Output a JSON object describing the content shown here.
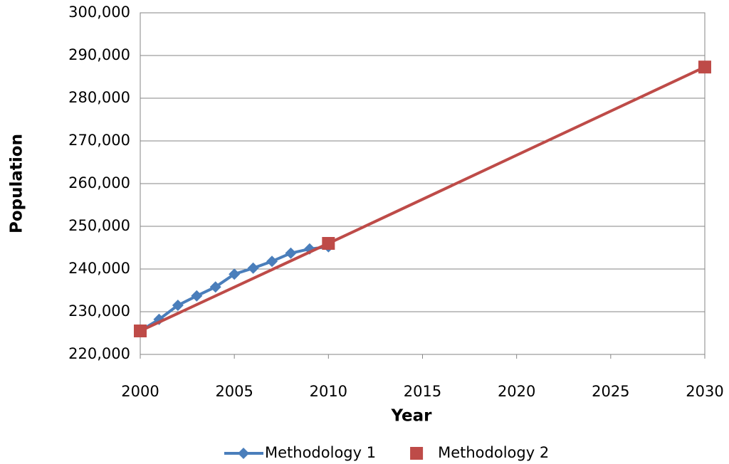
{
  "chart_data": {
    "type": "line",
    "x_label": "Year",
    "y_label": "Population",
    "xlim": [
      2000,
      2030
    ],
    "xticks": [
      2000,
      2005,
      2010,
      2015,
      2020,
      2025,
      2030
    ],
    "ylim": [
      220000,
      300000
    ],
    "yticks": [
      {
        "value": 220000,
        "label": "220,000"
      },
      {
        "value": 230000,
        "label": "230,000"
      },
      {
        "value": 240000,
        "label": "240,000"
      },
      {
        "value": 250000,
        "label": "250,000"
      },
      {
        "value": 260000,
        "label": "260,000"
      },
      {
        "value": 270000,
        "label": "270,000"
      },
      {
        "value": 280000,
        "label": "280,000"
      },
      {
        "value": 290000,
        "label": "290,000"
      },
      {
        "value": 300000,
        "label": "300,000"
      }
    ],
    "grid": true,
    "legend": "bottom",
    "series": [
      {
        "name": "Methodology 1",
        "color": "#4a7ebb",
        "marker": "diamond",
        "x": [
          2000,
          2001,
          2002,
          2003,
          2004,
          2005,
          2006,
          2007,
          2008,
          2009,
          2010
        ],
        "values": [
          225500,
          228200,
          231500,
          233700,
          235800,
          238800,
          240200,
          241800,
          243700,
          244700,
          245200
        ]
      },
      {
        "name": "Methodology 2",
        "color": "#be4b48",
        "marker": "square",
        "x": [
          2000,
          2010,
          2030
        ],
        "values": [
          225500,
          246000,
          287300
        ]
      }
    ]
  }
}
